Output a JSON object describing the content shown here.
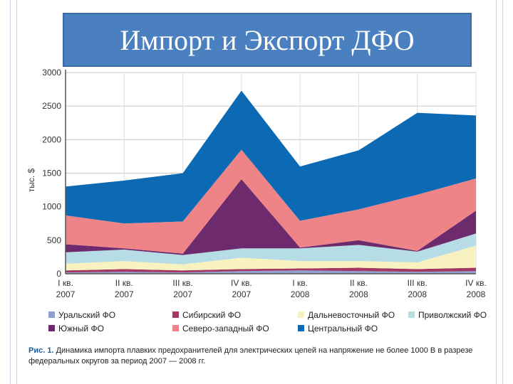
{
  "slide": {
    "title": "Импорт и Экспорт ДФО",
    "caption_label": "Рис. 1.",
    "caption_text": "Динамика импорта плавких предохранителей для электрических цепей на напряжение не более 1000 В в разрезе федеральных округов за период 2007 — 2008 гг.",
    "colors": {
      "title_bg": "#4a7fc0",
      "title_text": "#ffffff"
    }
  },
  "chart_data": {
    "type": "area",
    "stacked": true,
    "ylabel": "тыс. $",
    "ylim": [
      0,
      3000
    ],
    "yticks": [
      "0",
      "500",
      "1000",
      "1500",
      "2000",
      "2500",
      "3000"
    ],
    "categories": [
      [
        "I кв.",
        "2007"
      ],
      [
        "II кв.",
        "2007"
      ],
      [
        "III кв.",
        "2007"
      ],
      [
        "IV кв.",
        "2007"
      ],
      [
        "I кв.",
        "2008"
      ],
      [
        "II кв.",
        "2008"
      ],
      [
        "III кв.",
        "2008"
      ],
      [
        "IV кв.",
        "2008"
      ]
    ],
    "grid": true,
    "legend_position": "bottom",
    "series": [
      {
        "name": "Уральский ФО",
        "color": "#8e9fd0",
        "values": [
          20,
          30,
          20,
          40,
          50,
          40,
          30,
          40
        ]
      },
      {
        "name": "Сибирский ФО",
        "color": "#a33865",
        "values": [
          30,
          40,
          30,
          30,
          30,
          50,
          40,
          50
        ]
      },
      {
        "name": "Дальневосточный ФО",
        "color": "#f7f2c0",
        "values": [
          100,
          120,
          90,
          170,
          110,
          100,
          100,
          330
        ]
      },
      {
        "name": "Приволжский ФО",
        "color": "#b6dde5",
        "values": [
          170,
          170,
          140,
          140,
          190,
          240,
          160,
          180
        ]
      },
      {
        "name": "Южный ФО",
        "color": "#6d2a6c",
        "values": [
          120,
          20,
          20,
          1030,
          10,
          70,
          10,
          340
        ]
      },
      {
        "name": "Северо-западный ФО",
        "color": "#ee8488",
        "values": [
          430,
          370,
          480,
          440,
          400,
          460,
          840,
          480
        ]
      },
      {
        "name": "Центральный ФО",
        "color": "#0b6ab3",
        "values": [
          430,
          640,
          720,
          880,
          810,
          880,
          1220,
          940
        ]
      }
    ]
  }
}
